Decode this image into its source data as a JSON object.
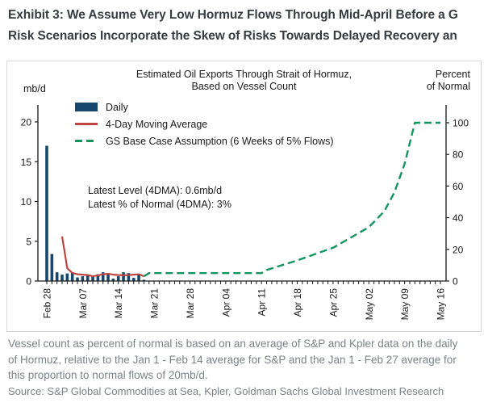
{
  "header": {
    "title_line1": "Exhibit 3: We Assume Very Low Hormuz Flows Through Mid-April Before a G",
    "title_line2": "Risk Scenarios Incorporate the Skew of Risks Towards Delayed Recovery an"
  },
  "chart": {
    "title_line1": "Estimated Oil Exports Through Strait of Hormuz,",
    "title_line2": "Based on Vessel Count",
    "left_axis_unit": "mb/d",
    "right_axis_unit_line1": "Percent",
    "right_axis_unit_line2": "of Normal",
    "legend": [
      {
        "label": "Daily"
      },
      {
        "label": "4-Day Moving Average"
      },
      {
        "label": "GS Base Case Assumption (6 Weeks of 5% Flows)"
      }
    ],
    "annotation_line1": "Latest Level (4DMA): 0.6mb/d",
    "annotation_line2": "Latest % of Normal (4DMA): 3%"
  },
  "chart_data": {
    "type": "combo",
    "title": "Estimated Oil Exports Through Strait of Hormuz, Based on Vessel Count",
    "left_axis": {
      "label": "mb/d",
      "ticks": [
        0,
        5,
        10,
        15,
        20
      ],
      "range": [
        0,
        22
      ]
    },
    "right_axis": {
      "label": "Percent of Normal",
      "ticks": [
        0,
        20,
        40,
        60,
        80,
        100
      ],
      "range": [
        0,
        110
      ]
    },
    "x_axis": {
      "tick_interval": "daily",
      "total_days": 77,
      "labels": [
        {
          "label": "Feb 28",
          "day": 0
        },
        {
          "label": "Mar 07",
          "day": 7
        },
        {
          "label": "Mar 14",
          "day": 14
        },
        {
          "label": "Mar 21",
          "day": 21
        },
        {
          "label": "Mar 28",
          "day": 28
        },
        {
          "label": "Apr 04",
          "day": 35
        },
        {
          "label": "Apr 11",
          "day": 42
        },
        {
          "label": "Apr 18",
          "day": 49
        },
        {
          "label": "Apr 25",
          "day": 56
        },
        {
          "label": "May 02",
          "day": 63
        },
        {
          "label": "May 09",
          "day": 70
        },
        {
          "label": "May 16",
          "day": 77
        }
      ]
    },
    "series": [
      {
        "name": "Daily",
        "type": "bar",
        "axis": "left",
        "dates": [
          "Feb 28",
          "Mar 01",
          "Mar 02",
          "Mar 03",
          "Mar 04",
          "Mar 05",
          "Mar 06",
          "Mar 07",
          "Mar 08",
          "Mar 09",
          "Mar 10",
          "Mar 11",
          "Mar 12",
          "Mar 13",
          "Mar 14",
          "Mar 15",
          "Mar 16",
          "Mar 17",
          "Mar 18",
          "Mar 19"
        ],
        "values": [
          17.0,
          3.4,
          1.1,
          0.8,
          0.95,
          1.1,
          0.45,
          0.6,
          0.8,
          0.6,
          0.85,
          1.1,
          0.95,
          0.3,
          0.6,
          1.1,
          1.0,
          0.4,
          0.8,
          0.15
        ]
      },
      {
        "name": "4-Day Moving Average",
        "type": "line",
        "axis": "left",
        "points": [
          [
            3,
            5.6
          ],
          [
            4,
            1.6
          ],
          [
            5,
            1.0
          ],
          [
            6,
            0.85
          ],
          [
            7,
            0.8
          ],
          [
            8,
            0.75
          ],
          [
            9,
            0.6
          ],
          [
            10,
            0.7
          ],
          [
            11,
            0.85
          ],
          [
            12,
            0.9
          ],
          [
            13,
            0.8
          ],
          [
            14,
            0.75
          ],
          [
            15,
            0.72
          ],
          [
            16,
            0.75
          ],
          [
            17,
            0.8
          ],
          [
            18,
            0.85
          ],
          [
            19,
            0.6
          ]
        ]
      },
      {
        "name": "GS Base Case Assumption (6 Weeks of 5% Flows)",
        "type": "dashed-line",
        "axis": "right",
        "points": [
          [
            19,
            3
          ],
          [
            20,
            5
          ],
          [
            42,
            5
          ],
          [
            43,
            7
          ],
          [
            49,
            13
          ],
          [
            56,
            21
          ],
          [
            63,
            34
          ],
          [
            66,
            44
          ],
          [
            68,
            56
          ],
          [
            70,
            74
          ],
          [
            72,
            100
          ],
          [
            77,
            100
          ]
        ]
      }
    ],
    "annotations": [
      "Latest Level (4DMA): 0.6mb/d",
      "Latest % of Normal (4DMA): 3%"
    ],
    "latest_level_4dma_mbd": 0.6,
    "latest_pct_of_normal_4dma": 3
  },
  "footer": {
    "note_line1": "Vessel count as percent of normal is based on an average of S&P and Kpler data on the daily",
    "note_line2": "of Hormuz, relative to the Jan 1 - Feb 14 average for S&P and the Jan 1 - Feb 27 average for",
    "note_line3": "this proportion to normal flows of 20mb/d.",
    "source": "Source: S&P Global Commodities at Sea, Kpler, Goldman Sachs Global Investment Research"
  },
  "colors": {
    "navy": "#16486e",
    "red": "#c0453e",
    "green": "#14945f",
    "axis": "#1a1a1a",
    "title_text": "#373c41",
    "footer_text": "#7d8287",
    "border": "#d8d8d8"
  }
}
